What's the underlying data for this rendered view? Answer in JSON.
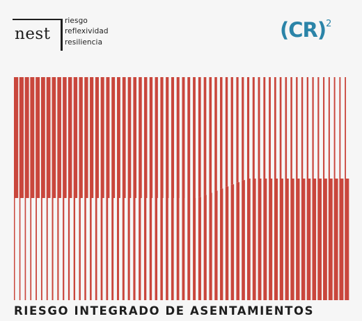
{
  "logo_nest": {
    "word": "nest",
    "taglines": [
      "riesgo",
      "reflexividad",
      "resiliencia"
    ]
  },
  "logo_cr": {
    "text": "(CR)",
    "superscript": "2",
    "color": "#2b84a8"
  },
  "cover_graphic": {
    "stripe_color": "#c9463c",
    "stripe_count": 62
  },
  "title": "RIESGO INTEGRADO DE ASENTAMIENTOS"
}
